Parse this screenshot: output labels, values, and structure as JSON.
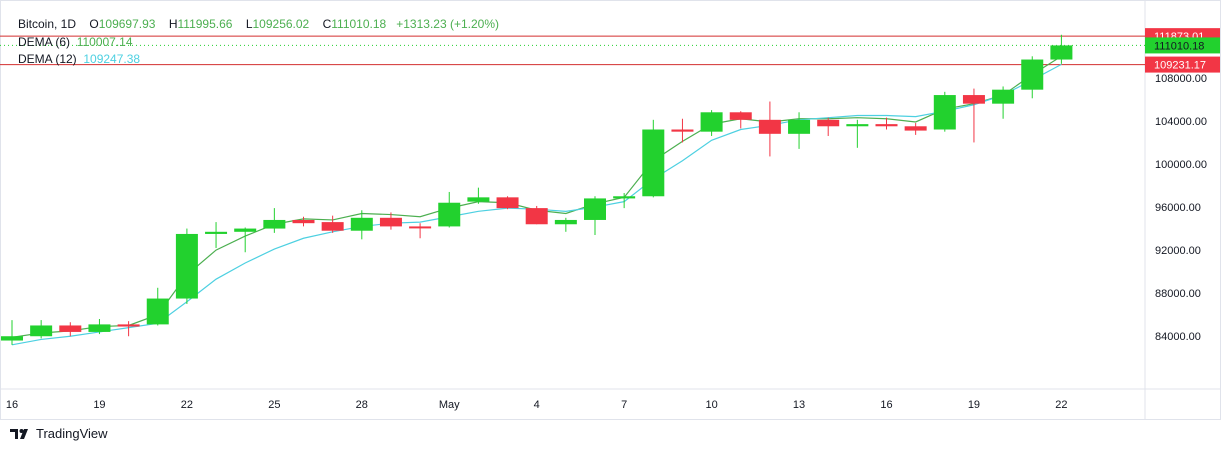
{
  "legend": {
    "symbol": "Bitcoin, 1D",
    "open_label": "O",
    "open": "109697.93",
    "high_label": "H",
    "high": "111995.66",
    "low_label": "L",
    "low": "109256.02",
    "close_label": "C",
    "close": "111010.18",
    "change": "+1313.23 (+1.20%)",
    "dema6_label": "DEMA (6)",
    "dema6_value": "110007.14",
    "dema12_label": "DEMA (12)",
    "dema12_value": "109247.38"
  },
  "brand": {
    "label": "TradingView",
    "icon": "tradingview-logo-icon"
  },
  "colors": {
    "up": "#22d12e",
    "down": "#f23645",
    "dema6": "#4caf50",
    "dema12": "#4dd0e1",
    "level_line": "#d32f2f",
    "axis_text": "#131722"
  },
  "chart_data": {
    "type": "candlestick",
    "ylim": [
      80000,
      113500
    ],
    "y_ticks": [
      84000,
      88000,
      92000,
      96000,
      100000,
      104000,
      108000
    ],
    "y_tick_labels": [
      "84000.00",
      "88000.00",
      "92000.00",
      "96000.00",
      "100000.00",
      "104000.00",
      "108000.00"
    ],
    "x_tick_labels": [
      {
        "index": 0,
        "label": "16"
      },
      {
        "index": 3,
        "label": "19"
      },
      {
        "index": 6,
        "label": "22"
      },
      {
        "index": 9,
        "label": "25"
      },
      {
        "index": 12,
        "label": "28"
      },
      {
        "index": 15,
        "label": "May"
      },
      {
        "index": 18,
        "label": "4"
      },
      {
        "index": 21,
        "label": "7"
      },
      {
        "index": 24,
        "label": "10"
      },
      {
        "index": 27,
        "label": "13"
      },
      {
        "index": 30,
        "label": "16"
      },
      {
        "index": 33,
        "label": "19"
      },
      {
        "index": 36,
        "label": "22"
      }
    ],
    "candles": [
      {
        "o": 83600,
        "h": 85500,
        "l": 83200,
        "c": 84000
      },
      {
        "o": 84000,
        "h": 85500,
        "l": 83800,
        "c": 85000
      },
      {
        "o": 85000,
        "h": 85300,
        "l": 84000,
        "c": 84400
      },
      {
        "o": 84400,
        "h": 85600,
        "l": 84200,
        "c": 85100
      },
      {
        "o": 85100,
        "h": 85400,
        "l": 84000,
        "c": 84900
      },
      {
        "o": 85100,
        "h": 88500,
        "l": 85000,
        "c": 87500
      },
      {
        "o": 87500,
        "h": 94000,
        "l": 87000,
        "c": 93500
      },
      {
        "o": 93500,
        "h": 94600,
        "l": 92200,
        "c": 93700
      },
      {
        "o": 93700,
        "h": 94100,
        "l": 91800,
        "c": 94000
      },
      {
        "o": 94000,
        "h": 95900,
        "l": 93600,
        "c": 94800
      },
      {
        "o": 94800,
        "h": 95100,
        "l": 94200,
        "c": 94500
      },
      {
        "o": 94600,
        "h": 95200,
        "l": 93600,
        "c": 93800
      },
      {
        "o": 93800,
        "h": 95700,
        "l": 93000,
        "c": 95000
      },
      {
        "o": 95000,
        "h": 95500,
        "l": 93900,
        "c": 94200
      },
      {
        "o": 94200,
        "h": 94500,
        "l": 93100,
        "c": 94100
      },
      {
        "o": 94200,
        "h": 97400,
        "l": 94100,
        "c": 96400
      },
      {
        "o": 96500,
        "h": 97800,
        "l": 96300,
        "c": 96900
      },
      {
        "o": 96900,
        "h": 97000,
        "l": 95800,
        "c": 95900
      },
      {
        "o": 95900,
        "h": 96100,
        "l": 94400,
        "c": 94400
      },
      {
        "o": 94400,
        "h": 95000,
        "l": 93700,
        "c": 94800
      },
      {
        "o": 94800,
        "h": 97000,
        "l": 93400,
        "c": 96800
      },
      {
        "o": 96800,
        "h": 97300,
        "l": 95900,
        "c": 97000
      },
      {
        "o": 97000,
        "h": 104100,
        "l": 96900,
        "c": 103200
      },
      {
        "o": 103200,
        "h": 104200,
        "l": 102000,
        "c": 103000
      },
      {
        "o": 103000,
        "h": 105000,
        "l": 102600,
        "c": 104800
      },
      {
        "o": 104800,
        "h": 104900,
        "l": 103300,
        "c": 104100
      },
      {
        "o": 104100,
        "h": 105800,
        "l": 100700,
        "c": 102800
      },
      {
        "o": 102800,
        "h": 104800,
        "l": 101400,
        "c": 104100
      },
      {
        "o": 104100,
        "h": 104300,
        "l": 102600,
        "c": 103500
      },
      {
        "o": 103500,
        "h": 104100,
        "l": 101500,
        "c": 103700
      },
      {
        "o": 103700,
        "h": 104300,
        "l": 103200,
        "c": 103500
      },
      {
        "o": 103500,
        "h": 103800,
        "l": 102700,
        "c": 103100
      },
      {
        "o": 103200,
        "h": 106700,
        "l": 103000,
        "c": 106400
      },
      {
        "o": 106400,
        "h": 107000,
        "l": 102000,
        "c": 105600
      },
      {
        "o": 105600,
        "h": 107200,
        "l": 104200,
        "c": 106900
      },
      {
        "o": 106900,
        "h": 110000,
        "l": 106100,
        "c": 109700
      },
      {
        "o": 109700,
        "h": 112000,
        "l": 109300,
        "c": 111010
      }
    ],
    "series": [
      {
        "name": "DEMA (6)",
        "values": [
          83900,
          84300,
          84500,
          84900,
          85000,
          86000,
          89700,
          92000,
          93300,
          94400,
          94900,
          94800,
          95400,
          95300,
          95100,
          95900,
          96500,
          96400,
          95700,
          95400,
          96300,
          96900,
          100300,
          102100,
          103700,
          104200,
          103900,
          104200,
          104200,
          104300,
          104200,
          103900,
          105100,
          105600,
          106400,
          108300,
          110007
        ]
      },
      {
        "name": "DEMA (12)",
        "values": [
          83200,
          83700,
          84000,
          84400,
          84800,
          85200,
          87200,
          89300,
          90800,
          92100,
          93100,
          93700,
          94200,
          94500,
          94600,
          95100,
          95600,
          95900,
          95800,
          95600,
          96000,
          96500,
          98600,
          100300,
          102200,
          103200,
          103600,
          104100,
          104300,
          104500,
          104500,
          104400,
          104900,
          105500,
          106400,
          107800,
          109247
        ]
      }
    ],
    "price_labels": [
      {
        "value": 111873.01,
        "label": "111873.01",
        "style": "red"
      },
      {
        "value": 111010.18,
        "label": "111010.18",
        "style": "green"
      },
      {
        "value": 109231.17,
        "label": "109231.17",
        "style": "red"
      }
    ],
    "horizontal_lines": [
      111873.01,
      109231.17
    ]
  }
}
